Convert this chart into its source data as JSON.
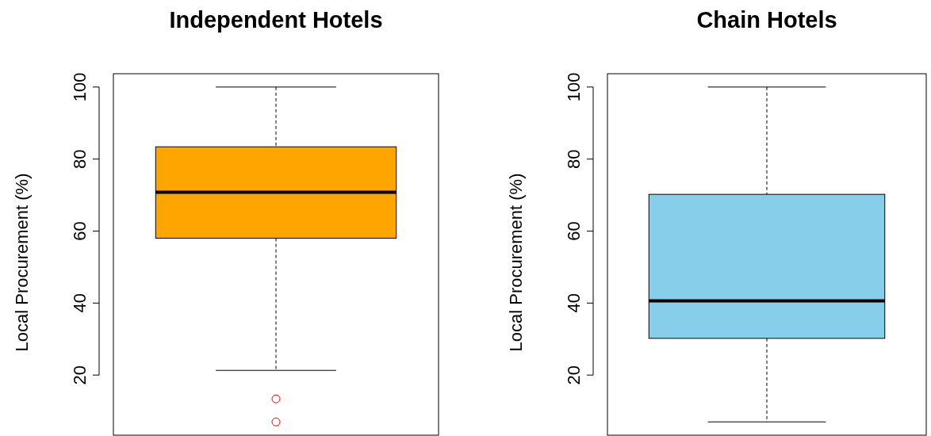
{
  "chart_data": [
    {
      "type": "box",
      "title": "Independent Hotels",
      "ylabel": "Local Procurement (%)",
      "categories": [
        null
      ],
      "colors": [
        "#ffa500"
      ],
      "ylim": [
        3.3,
        103.7
      ],
      "yticks": [
        20,
        40,
        60,
        80,
        100
      ],
      "boxes": [
        {
          "low": 21.3,
          "q1": 58,
          "median": 70.8,
          "q3": 83.4,
          "high": 100,
          "outliers": [
            13.4,
            7
          ]
        }
      ]
    },
    {
      "type": "box",
      "title": "Chain Hotels",
      "ylabel": "Local Procurement (%)",
      "categories": [
        null
      ],
      "colors": [
        "#87ceeb"
      ],
      "ylim": [
        3.3,
        103.7
      ],
      "yticks": [
        20,
        40,
        60,
        80,
        100
      ],
      "boxes": [
        {
          "low": 7,
          "q1": 30.2,
          "median": 40.6,
          "q3": 70.2,
          "high": 100
        }
      ]
    }
  ]
}
